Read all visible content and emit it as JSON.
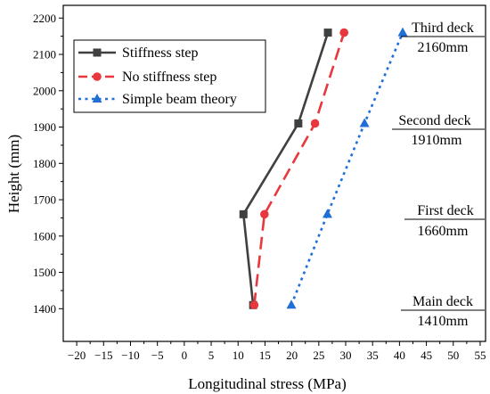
{
  "chart_data": {
    "type": "line",
    "xlabel": "Longitudinal stress (MPa)",
    "ylabel": "Height (mm)",
    "xlim": [
      -22.5,
      56
    ],
    "ylim": [
      1310,
      2235
    ],
    "xticks": [
      -20,
      -15,
      -10,
      -5,
      0,
      5,
      10,
      15,
      20,
      25,
      30,
      35,
      40,
      45,
      50,
      55
    ],
    "yticks": [
      1400,
      1500,
      1600,
      1700,
      1800,
      1900,
      2000,
      2100,
      2200
    ],
    "grid": false,
    "legend_position": "top-left",
    "series": [
      {
        "name": "Stiffness step",
        "color": "#404040",
        "line_style": "solid",
        "marker": "square",
        "points": [
          {
            "x": 12.8,
            "y": 1410
          },
          {
            "x": 11.0,
            "y": 1660
          },
          {
            "x": 21.2,
            "y": 1910
          },
          {
            "x": 26.7,
            "y": 2160
          }
        ]
      },
      {
        "name": "No stiffness step",
        "color": "#e8383d",
        "line_style": "dashed",
        "marker": "circle",
        "points": [
          {
            "x": 13.0,
            "y": 1410
          },
          {
            "x": 14.9,
            "y": 1660
          },
          {
            "x": 24.3,
            "y": 1910
          },
          {
            "x": 29.7,
            "y": 2160
          }
        ]
      },
      {
        "name": "Simple beam theory",
        "color": "#1f6fd6",
        "line_style": "dotted",
        "marker": "triangle",
        "points": [
          {
            "x": 19.9,
            "y": 1410
          },
          {
            "x": 26.6,
            "y": 1660
          },
          {
            "x": 33.5,
            "y": 1910
          },
          {
            "x": 40.6,
            "y": 2160
          }
        ]
      }
    ],
    "annotations": [
      {
        "title": "Third deck",
        "value": "2160mm"
      },
      {
        "title": "Second deck",
        "value": "1910mm"
      },
      {
        "title": "First deck",
        "value": "1660mm"
      },
      {
        "title": "Main deck",
        "value": "1410mm"
      }
    ]
  }
}
